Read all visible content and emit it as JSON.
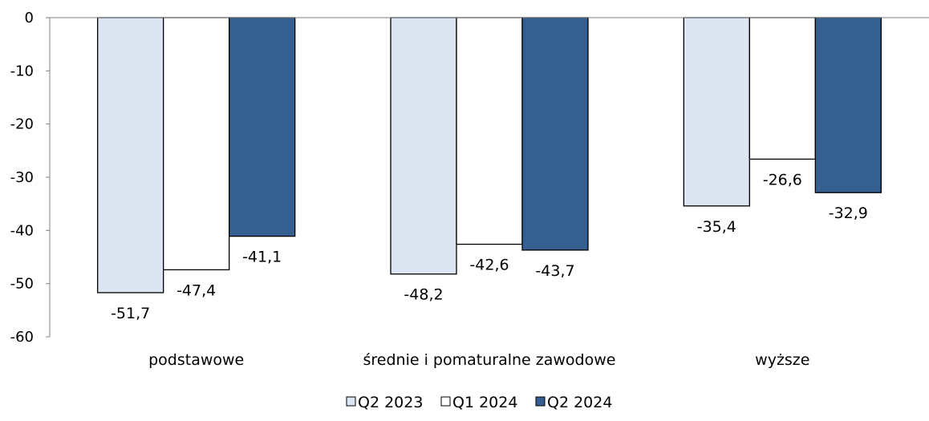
{
  "chart_data": {
    "type": "bar",
    "orientation": "vertical",
    "categories": [
      "podstawowe",
      "średnie i pomaturalne zawodowe",
      "wyższe"
    ],
    "series": [
      {
        "name": "Q2 2023",
        "values": [
          -51.7,
          -48.2,
          -35.4
        ],
        "labels": [
          "-51,7",
          "-48,2",
          "-35,4"
        ],
        "color": "#DCE6F2"
      },
      {
        "name": "Q1 2024",
        "values": [
          -47.4,
          -42.6,
          -26.6
        ],
        "labels": [
          "-47,4",
          "-42,6",
          "-26,6"
        ],
        "color": "#FFFFFF"
      },
      {
        "name": "Q2 2024",
        "values": [
          -41.1,
          -43.7,
          -32.9
        ],
        "labels": [
          "-41,1",
          "-43,7",
          "-32,9"
        ],
        "color": "#365F91"
      }
    ],
    "ylim": [
      -60,
      0
    ],
    "yticks": [
      0,
      -10,
      -20,
      -30,
      -40,
      -50,
      -60
    ],
    "ytick_labels": [
      "0",
      "-10",
      "-20",
      "-30",
      "-40",
      "-50",
      "-60"
    ],
    "grid": false,
    "legend_position": "bottom-center",
    "bar_edge_color": "#000000"
  }
}
